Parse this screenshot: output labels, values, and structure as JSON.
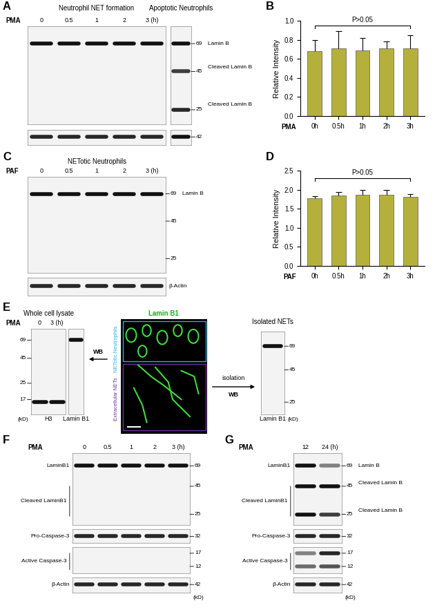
{
  "chart_data": [
    {
      "label": "B",
      "type": "bar",
      "categories": [
        "0h",
        "0.5h",
        "1h",
        "2h",
        "3h"
      ],
      "values": [
        0.68,
        0.71,
        0.69,
        0.71,
        0.71
      ],
      "errors": [
        0.12,
        0.18,
        0.13,
        0.07,
        0.14
      ],
      "color": "#b5b03c",
      "ylim": [
        0,
        1.0
      ],
      "yticks": [
        0.0,
        0.2,
        0.4,
        0.6,
        0.8,
        1.0
      ],
      "ylabel": "Relative Intensity",
      "xlabel": "PMA",
      "annotation": {
        "text": "P>0.05",
        "from": "0h",
        "to": "3h",
        "y": 0.95
      }
    },
    {
      "label": "D",
      "type": "bar",
      "categories": [
        "0h",
        "0.5h",
        "1h",
        "2h",
        "3h"
      ],
      "values": [
        1.77,
        1.84,
        1.86,
        1.87,
        1.81
      ],
      "errors": [
        0.06,
        0.1,
        0.13,
        0.12,
        0.08
      ],
      "color": "#b5b03c",
      "ylim": [
        0,
        2.5
      ],
      "yticks": [
        0.0,
        0.5,
        1.0,
        1.5,
        2.0,
        2.5
      ],
      "ylabel": "Relative Intensity",
      "xlabel": "PAF",
      "annotation": {
        "text": "P>0.05",
        "from": "0h",
        "to": "3h",
        "y": 2.3
      }
    }
  ],
  "blot_panels": [
    {
      "label": "A",
      "blots": [
        {
          "title": "Neutrophil NET formation",
          "treatment": "PMA",
          "lanes": [
            "0",
            "0.5",
            "1",
            "2",
            "3 (h)"
          ],
          "membranes": [
            {
              "kd_range": [
                20,
                90
              ],
              "bands": [
                {
                  "kd": 69,
                  "intensity": [
                    1,
                    1,
                    1,
                    1,
                    1
                  ]
                }
              ]
            },
            {
              "kd_range": [
                36,
                48
              ],
              "bands": [
                {
                  "kd": 42,
                  "intensity": [
                    0.9,
                    0.9,
                    0.9,
                    0.9,
                    0.9
                  ]
                }
              ]
            }
          ]
        },
        {
          "title": "Apoptotic Neutrophils",
          "lanes": [
            null
          ],
          "membranes": [
            {
              "kd_range": [
                20,
                90
              ],
              "bands": [
                {
                  "kd": 69,
                  "intensity": [
                    1
                  ]
                },
                {
                  "kd": 45,
                  "intensity": [
                    0.8
                  ]
                },
                {
                  "kd": 25,
                  "intensity": [
                    0.9
                  ]
                }
              ],
              "markers": [
                69,
                45,
                25
              ],
              "marker_side": "right",
              "right_labels": [
                {
                  "text": "Lamin B",
                  "kd": 69
                },
                {
                  "text": "Cleaved Lamin B",
                  "kd": 48
                },
                {
                  "text": "Cleaved Lamin B",
                  "kd": 27
                }
              ]
            },
            {
              "kd_range": [
                36,
                48
              ],
              "bands": [
                {
                  "kd": 42,
                  "intensity": [
                    1
                  ]
                }
              ],
              "markers": [
                42
              ],
              "marker_side": "right"
            }
          ]
        }
      ]
    },
    {
      "label": "C",
      "blots": [
        {
          "title": "NETotic Neutrophils",
          "treatment": "PAF",
          "lanes": [
            "0",
            "0.5",
            "1",
            "2",
            "3 (h)"
          ],
          "membranes": [
            {
              "kd_range": [
                20,
                90
              ],
              "bands": [
                {
                  "kd": 69,
                  "intensity": [
                    1,
                    1,
                    1,
                    1,
                    1
                  ]
                }
              ],
              "markers": [
                69,
                45,
                25
              ],
              "marker_side": "right",
              "right_labels": [
                {
                  "text": "Lamin B",
                  "kd": 69
                }
              ]
            },
            {
              "kd_range": [
                36,
                48
              ],
              "bands": [
                {
                  "kd": 42,
                  "intensity": [
                    0.9,
                    0.9,
                    0.9,
                    0.9,
                    0.9
                  ]
                }
              ],
              "right_labels": [
                {
                  "text": "β-Actin",
                  "kd": 42
                }
              ]
            }
          ]
        }
      ]
    },
    {
      "label": "E",
      "blots": [
        {
          "title": "Whole cell lysate",
          "treatment": "PMA",
          "lanes": [
            "0",
            "3 (h)"
          ],
          "membranes": [
            {
              "kd_range": [
                12,
                90
              ],
              "bands": [
                {
                  "kd": 16,
                  "intensity": [
                    1,
                    1
                  ]
                }
              ],
              "markers": [
                69,
                45,
                25,
                17
              ],
              "marker_side": "left",
              "unit": "(kD)",
              "bottom_label": "H3"
            }
          ]
        },
        {
          "lanes": [
            null
          ],
          "membranes": [
            {
              "kd_range": [
                12,
                90
              ],
              "bands": [
                {
                  "kd": 69,
                  "intensity": [
                    1
                  ]
                }
              ],
              "bottom_label": "Lamin B1"
            }
          ]
        },
        {
          "title": "Isolated NETs",
          "lanes": [
            null
          ],
          "membranes": [
            {
              "kd_range": [
                20,
                90
              ],
              "bands": [
                {
                  "kd": 69,
                  "intensity": [
                    1
                  ]
                }
              ],
              "markers": [
                69,
                45,
                25
              ],
              "marker_side": "right",
              "unit": "(kD)",
              "bottom_label": "Lamin B1"
            }
          ]
        }
      ],
      "image": {
        "title": "Lamin B1",
        "regions": [
          "NETotic Neutrophils",
          "Extracellular NETs"
        ]
      },
      "arrows": [
        "WB",
        "WB"
      ],
      "process": "isolation"
    },
    {
      "label": "F",
      "blots": [
        {
          "treatment": "PMA",
          "lanes": [
            "0",
            "0.5",
            "1",
            "2",
            "3 (h)"
          ],
          "membranes": [
            {
              "kd_range": [
                20,
                90
              ],
              "bands": [
                {
                  "kd": 69,
                  "intensity": [
                    1,
                    1,
                    1,
                    1,
                    1
                  ]
                }
              ],
              "markers": [
                69,
                45,
                25
              ],
              "marker_side": "right",
              "left_labels": [
                {
                  "text": "LaminB1",
                  "kd": 69
                },
                {
                  "text": "Cleaved LaminB1",
                  "kd": [
                    45,
                    24
                  ]
                }
              ]
            },
            {
              "kd_range": [
                28,
                37
              ],
              "bands": [
                {
                  "kd": 32,
                  "intensity": [
                    0.9,
                    0.9,
                    0.9,
                    0.9,
                    0.9
                  ]
                }
              ],
              "markers": [
                32
              ],
              "marker_side": "right",
              "left_labels": [
                {
                  "text": "Pro-Caspase-3",
                  "kd": 32
                }
              ]
            },
            {
              "kd_range": [
                10,
                20
              ],
              "bands": [],
              "markers": [
                17,
                12
              ],
              "marker_side": "right",
              "left_labels": [
                {
                  "text": "Active Caspase-3",
                  "kd": [
                    17,
                    11
                  ]
                }
              ]
            },
            {
              "kd_range": [
                36,
                48
              ],
              "bands": [
                {
                  "kd": 42,
                  "intensity": [
                    0.9,
                    0.9,
                    0.9,
                    0.9,
                    0.9
                  ]
                }
              ],
              "markers": [
                42
              ],
              "marker_side": "right",
              "unit": "(kD)",
              "left_labels": [
                {
                  "text": "β-Actin",
                  "kd": 42
                }
              ]
            }
          ]
        }
      ]
    },
    {
      "label": "G",
      "blots": [
        {
          "treatment": "PMA",
          "lanes": [
            "12",
            "24 (h)"
          ],
          "membranes": [
            {
              "kd_range": [
                20,
                90
              ],
              "bands": [
                {
                  "kd": 69,
                  "intensity": [
                    1,
                    0.5
                  ]
                },
                {
                  "kd": 45,
                  "intensity": [
                    1,
                    1
                  ]
                },
                {
                  "kd": 25,
                  "intensity": [
                    1,
                    0.8
                  ]
                }
              ],
              "markers": [
                69,
                45,
                25
              ],
              "marker_side": "right",
              "left_labels": [
                {
                  "text": "LaminB1",
                  "kd": 69
                },
                {
                  "text": "Cleaved LaminB1",
                  "kd": [
                    45,
                    24
                  ]
                }
              ],
              "right_labels": [
                {
                  "text": "Lamin B",
                  "kd": 69
                },
                {
                  "text": "Cleaved Lamin B",
                  "kd": 48
                },
                {
                  "text": "Cleaved Lamin B",
                  "kd": 27
                }
              ]
            },
            {
              "kd_range": [
                28,
                37
              ],
              "bands": [
                {
                  "kd": 32,
                  "intensity": [
                    0.9,
                    0.9
                  ]
                }
              ],
              "markers": [
                32
              ],
              "marker_side": "right",
              "left_labels": [
                {
                  "text": "Pro-Caspase-3",
                  "kd": 32
                }
              ]
            },
            {
              "kd_range": [
                10,
                20
              ],
              "bands": [
                {
                  "kd": 17,
                  "intensity": [
                    0.5,
                    0.9
                  ]
                },
                {
                  "kd": 12,
                  "intensity": [
                    0.6,
                    0.7
                  ]
                }
              ],
              "markers": [
                17,
                12
              ],
              "marker_side": "right",
              "left_labels": [
                {
                  "text": "Active Caspase-3",
                  "kd": [
                    17,
                    11
                  ]
                }
              ]
            },
            {
              "kd_range": [
                36,
                48
              ],
              "bands": [
                {
                  "kd": 42,
                  "intensity": [
                    0.9,
                    0.9
                  ]
                }
              ],
              "markers": [
                42
              ],
              "marker_side": "right",
              "unit": "(kD)",
              "left_labels": [
                {
                  "text": "β-Actin",
                  "kd": 42
                }
              ]
            }
          ]
        }
      ]
    }
  ]
}
